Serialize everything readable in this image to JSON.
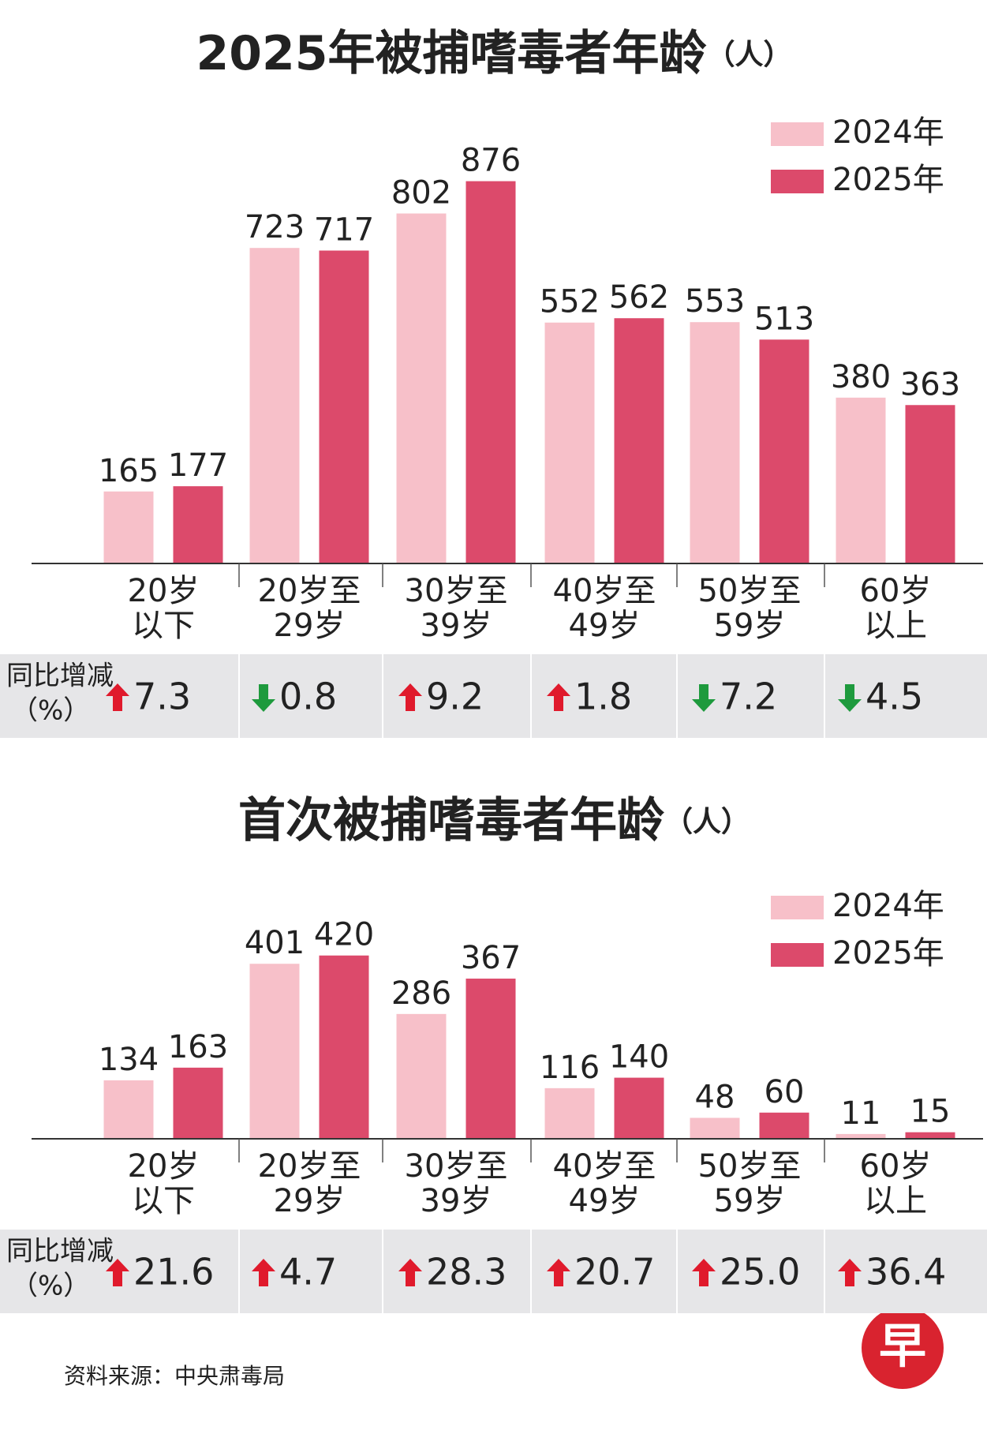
{
  "chart_data": [
    {
      "type": "bar",
      "title": "2025年被捕嗜毒者年龄",
      "title_unit": "（人）",
      "categories": [
        [
          "20岁",
          "以下"
        ],
        [
          "20岁至",
          "29岁"
        ],
        [
          "30岁至",
          "39岁"
        ],
        [
          "40岁至",
          "49岁"
        ],
        [
          "50岁至",
          "59岁"
        ],
        [
          "60岁",
          "以上"
        ]
      ],
      "series": [
        {
          "name": "2024年",
          "color": "#f7c0c9",
          "values": [
            165,
            723,
            802,
            552,
            553,
            380
          ]
        },
        {
          "name": "2025年",
          "color": "#dc4a6b",
          "values": [
            177,
            717,
            876,
            562,
            513,
            363
          ]
        }
      ],
      "change": {
        "label": [
          "同比增减",
          "（%）"
        ],
        "values": [
          7.3,
          -0.8,
          9.2,
          1.8,
          -7.2,
          -4.5
        ],
        "value_labels": [
          "7.3",
          "0.8",
          "9.2",
          "1.8",
          "7.2",
          "4.5"
        ],
        "up_color": "#e01a2c",
        "down_color": "#1e9a3d"
      }
    },
    {
      "type": "bar",
      "title": "首次被捕嗜毒者年龄",
      "title_unit": "（人）",
      "categories": [
        [
          "20岁",
          "以下"
        ],
        [
          "20岁至",
          "29岁"
        ],
        [
          "30岁至",
          "39岁"
        ],
        [
          "40岁至",
          "49岁"
        ],
        [
          "50岁至",
          "59岁"
        ],
        [
          "60岁",
          "以上"
        ]
      ],
      "series": [
        {
          "name": "2024年",
          "color": "#f7c0c9",
          "values": [
            134,
            401,
            286,
            116,
            48,
            11
          ]
        },
        {
          "name": "2025年",
          "color": "#dc4a6b",
          "values": [
            163,
            420,
            367,
            140,
            60,
            15
          ]
        }
      ],
      "change": {
        "label": [
          "同比增减",
          "（%）"
        ],
        "values": [
          21.6,
          4.7,
          28.3,
          20.7,
          25.0,
          36.4
        ],
        "value_labels": [
          "21.6",
          "4.7",
          "28.3",
          "20.7",
          "25.0",
          "36.4"
        ],
        "up_color": "#e01a2c",
        "down_color": "#1e9a3d"
      }
    }
  ],
  "source": "资料来源：中央肃毒局",
  "logo": "早"
}
